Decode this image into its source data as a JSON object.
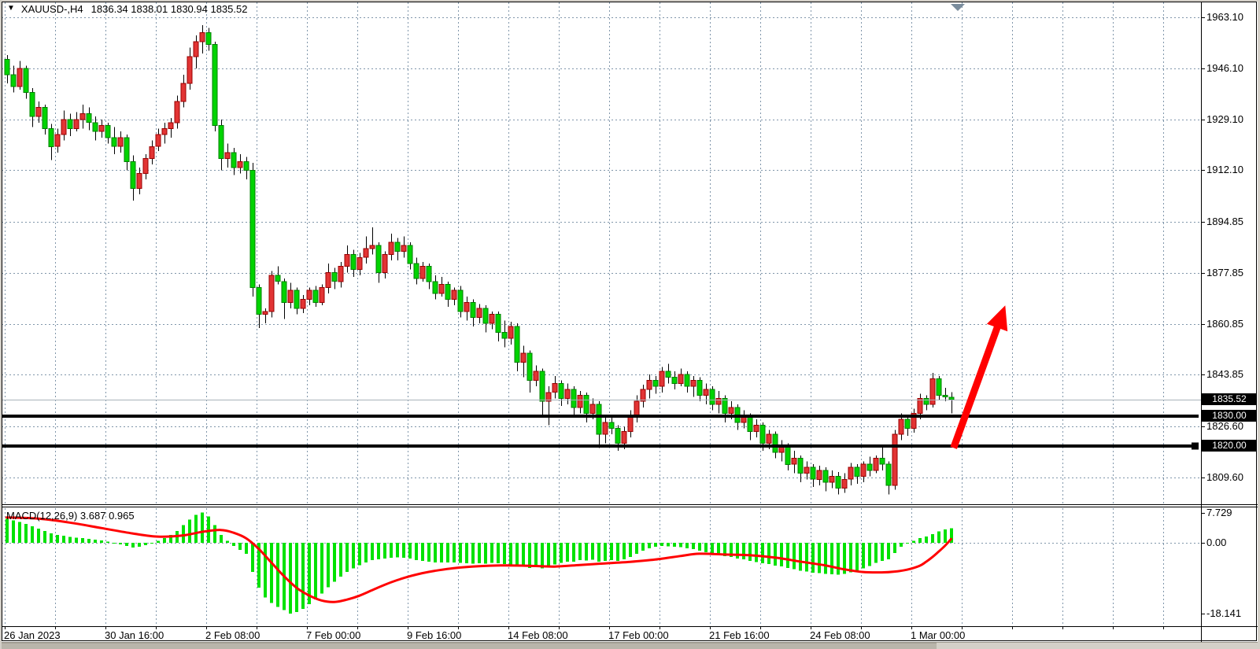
{
  "window": {
    "title_symbol": "XAUUSD-,H4",
    "title_ohlc": "1836.34 1838.01 1830.94 1835.52"
  },
  "colors": {
    "background": "#FFFFFF",
    "frame": "#D4D0C8",
    "grid": "#8096AA",
    "bull_fill": "#E23434",
    "bull_stroke": "#990000",
    "bear_fill": "#00D400",
    "bear_stroke": "#007F00",
    "wick": "#000000",
    "histogram": "#00E200",
    "signal_line": "#FF0000",
    "current_price_line": "#A8B2BA",
    "object_line": "#000000",
    "arrow": "#FF0000",
    "badge_bg": "#000000",
    "badge_fg": "#FFFFFF",
    "shift_marker": "#7A8C9C"
  },
  "price_axis": {
    "ticks": [
      "1963.10",
      "1946.10",
      "1929.10",
      "1912.10",
      "1894.85",
      "1877.85",
      "1860.85",
      "1843.85",
      "1826.60",
      "1809.60"
    ]
  },
  "macd_axis": {
    "max_label": "7.729",
    "zero_label": "0.00",
    "min_label": "-18.141"
  },
  "chart_data": {
    "type": "candlestick",
    "symbol": "XAUUSD-",
    "timeframe": "H4",
    "title": "XAUUSD-,H4  1836.34 1838.01 1830.94 1835.52",
    "last_ohlc": {
      "open": 1836.34,
      "high": 1838.01,
      "low": 1830.94,
      "close": 1835.52
    },
    "price_axis_ticks": [
      1963.1,
      1946.1,
      1929.1,
      1912.1,
      1894.85,
      1877.85,
      1860.85,
      1843.85,
      1826.6,
      1809.6
    ],
    "ylim_main": [
      1804.0,
      1968.4
    ],
    "grid": "dashed",
    "bars_per_grid_cell": 8,
    "time_labels": [
      {
        "text": "26 Jan 2023",
        "grid": 0
      },
      {
        "text": "30 Jan 16:00",
        "grid": 2
      },
      {
        "text": "2 Feb 08:00",
        "grid": 4
      },
      {
        "text": "7 Feb 00:00",
        "grid": 6
      },
      {
        "text": "9 Feb 16:00",
        "grid": 8
      },
      {
        "text": "14 Feb 08:00",
        "grid": 10
      },
      {
        "text": "17 Feb 00:00",
        "grid": 12
      },
      {
        "text": "21 Feb 16:00",
        "grid": 14
      },
      {
        "text": "24 Feb 08:00",
        "grid": 16
      },
      {
        "text": "1 Mar 00:00",
        "grid": 18
      }
    ],
    "current_price": {
      "value": 1835.52,
      "label": "1835.52"
    },
    "horizontal_lines": [
      {
        "price": 1830.0,
        "label": "1830.00",
        "handle": false
      },
      {
        "price": 1820.0,
        "label": "1820.00",
        "handle": true
      }
    ],
    "arrow": {
      "tail": {
        "bar": 150.4,
        "price": 1819.5
      },
      "tip": {
        "bar": 158.6,
        "price": 1867.0
      }
    },
    "candles": [
      [
        1949,
        1950.5,
        1941,
        1944
      ],
      [
        1944,
        1947,
        1938,
        1940
      ],
      [
        1940,
        1948.5,
        1939,
        1946
      ],
      [
        1946,
        1947,
        1936,
        1938
      ],
      [
        1938,
        1939.5,
        1926.5,
        1930
      ],
      [
        1930,
        1935,
        1928,
        1933
      ],
      [
        1933,
        1934,
        1924,
        1926
      ],
      [
        1926,
        1927.5,
        1915.5,
        1920
      ],
      [
        1920,
        1926,
        1918,
        1924
      ],
      [
        1924,
        1932,
        1922,
        1929
      ],
      [
        1929,
        1931,
        1923.5,
        1926
      ],
      [
        1926,
        1931.5,
        1925,
        1929
      ],
      [
        1929,
        1934,
        1926,
        1931
      ],
      [
        1931,
        1933,
        1925.5,
        1928
      ],
      [
        1928,
        1930,
        1922,
        1925
      ],
      [
        1925,
        1929,
        1923,
        1927
      ],
      [
        1927,
        1928,
        1921,
        1923
      ],
      [
        1923,
        1926.5,
        1917.5,
        1920
      ],
      [
        1920,
        1925,
        1918,
        1923
      ],
      [
        1923,
        1924,
        1912,
        1915
      ],
      [
        1915,
        1917,
        1902,
        1906
      ],
      [
        1906,
        1913,
        1904,
        1911
      ],
      [
        1911,
        1917.5,
        1909,
        1916
      ],
      [
        1916,
        1922,
        1914,
        1920
      ],
      [
        1920,
        1926,
        1918.5,
        1924
      ],
      [
        1924,
        1928,
        1921,
        1926
      ],
      [
        1926,
        1929.5,
        1923,
        1928
      ],
      [
        1928,
        1937,
        1926,
        1935
      ],
      [
        1935,
        1944,
        1933,
        1941
      ],
      [
        1941,
        1953,
        1939,
        1950
      ],
      [
        1950,
        1957,
        1946,
        1955
      ],
      [
        1955,
        1960.5,
        1951,
        1958
      ],
      [
        1958,
        1959.5,
        1952,
        1954
      ],
      [
        1954,
        1955,
        1925,
        1927
      ],
      [
        1927,
        1929,
        1912,
        1916
      ],
      [
        1916,
        1921,
        1913,
        1918
      ],
      [
        1918,
        1919.5,
        1910.5,
        1913
      ],
      [
        1913,
        1917.5,
        1911,
        1915
      ],
      [
        1915,
        1916.5,
        1909,
        1912
      ],
      [
        1912,
        1914.5,
        1870,
        1873
      ],
      [
        1873,
        1874,
        1859.5,
        1864
      ],
      [
        1864,
        1866,
        1861,
        1865
      ],
      [
        1865,
        1878.5,
        1863,
        1877
      ],
      [
        1877,
        1880,
        1874,
        1875
      ],
      [
        1875,
        1876,
        1862.5,
        1868
      ],
      [
        1868,
        1874.5,
        1866,
        1872
      ],
      [
        1872,
        1873,
        1864,
        1866
      ],
      [
        1866,
        1870.5,
        1864.5,
        1869
      ],
      [
        1869,
        1873,
        1867,
        1872
      ],
      [
        1872,
        1873.5,
        1866.5,
        1868
      ],
      [
        1868,
        1874,
        1867,
        1873
      ],
      [
        1873,
        1881,
        1871,
        1878
      ],
      [
        1878,
        1879.5,
        1872.5,
        1875
      ],
      [
        1875,
        1881.5,
        1873,
        1880
      ],
      [
        1880,
        1887,
        1878,
        1884
      ],
      [
        1884,
        1885.5,
        1876.5,
        1879
      ],
      [
        1879,
        1884.5,
        1877,
        1883
      ],
      [
        1883,
        1890,
        1881,
        1886
      ],
      [
        1886,
        1893,
        1884,
        1887
      ],
      [
        1887,
        1888,
        1874.5,
        1878
      ],
      [
        1878,
        1885,
        1876,
        1884
      ],
      [
        1884,
        1891,
        1882,
        1888
      ],
      [
        1888,
        1889.5,
        1882,
        1885
      ],
      [
        1885,
        1890,
        1883,
        1887
      ],
      [
        1887,
        1888,
        1879,
        1881
      ],
      [
        1881,
        1883,
        1874,
        1876
      ],
      [
        1876,
        1881.5,
        1875,
        1880
      ],
      [
        1880,
        1881,
        1872.5,
        1875
      ],
      [
        1875,
        1877,
        1869,
        1871
      ],
      [
        1871,
        1876.5,
        1870,
        1874
      ],
      [
        1874,
        1875,
        1866.5,
        1869
      ],
      [
        1869,
        1873,
        1867,
        1872
      ],
      [
        1872,
        1873.5,
        1863,
        1865
      ],
      [
        1865,
        1870,
        1862,
        1868
      ],
      [
        1868,
        1869,
        1860,
        1863
      ],
      [
        1863,
        1867.5,
        1861,
        1866
      ],
      [
        1866,
        1867,
        1858,
        1861
      ],
      [
        1861,
        1865,
        1859,
        1864
      ],
      [
        1864,
        1865,
        1855,
        1858
      ],
      [
        1858,
        1862,
        1853,
        1856
      ],
      [
        1856,
        1861.5,
        1854,
        1860
      ],
      [
        1860,
        1861,
        1845,
        1848
      ],
      [
        1848,
        1853.5,
        1843,
        1851
      ],
      [
        1851,
        1852,
        1838,
        1842
      ],
      [
        1842,
        1847,
        1840,
        1845
      ],
      [
        1845,
        1846,
        1830,
        1835
      ],
      [
        1835,
        1840,
        1827,
        1838
      ],
      [
        1838,
        1843.5,
        1836,
        1841
      ],
      [
        1841,
        1842,
        1833.5,
        1836
      ],
      [
        1836,
        1841,
        1834,
        1839
      ],
      [
        1839,
        1840,
        1830,
        1833
      ],
      [
        1833,
        1838.5,
        1831,
        1837
      ],
      [
        1837,
        1838,
        1828,
        1831
      ],
      [
        1831,
        1836,
        1829,
        1834
      ],
      [
        1834,
        1835,
        1819.5,
        1824
      ],
      [
        1824,
        1830,
        1821,
        1828
      ],
      [
        1828,
        1829.5,
        1824,
        1826
      ],
      [
        1826,
        1827,
        1818.5,
        1821
      ],
      [
        1821,
        1826.5,
        1819,
        1825
      ],
      [
        1825,
        1832,
        1823,
        1830
      ],
      [
        1830,
        1837,
        1828,
        1835
      ],
      [
        1835,
        1840.5,
        1833,
        1839
      ],
      [
        1839,
        1844,
        1836,
        1842
      ],
      [
        1842,
        1843.5,
        1837.5,
        1840
      ],
      [
        1840,
        1846.5,
        1838,
        1845
      ],
      [
        1845,
        1847.5,
        1841,
        1843
      ],
      [
        1843,
        1845,
        1839,
        1841
      ],
      [
        1841,
        1846,
        1840,
        1844
      ],
      [
        1844,
        1845,
        1838,
        1840
      ],
      [
        1840,
        1843.5,
        1836.5,
        1842
      ],
      [
        1842,
        1843,
        1835,
        1837
      ],
      [
        1837,
        1841,
        1834,
        1839
      ],
      [
        1839,
        1840,
        1832,
        1834
      ],
      [
        1834,
        1838.5,
        1831,
        1836
      ],
      [
        1836,
        1837,
        1828,
        1831
      ],
      [
        1831,
        1835,
        1829,
        1833
      ],
      [
        1833,
        1834,
        1825.5,
        1828
      ],
      [
        1828,
        1832,
        1826,
        1830
      ],
      [
        1830,
        1831,
        1822,
        1825
      ],
      [
        1825,
        1829,
        1823,
        1827
      ],
      [
        1827,
        1828,
        1818.5,
        1821
      ],
      [
        1821,
        1825.5,
        1819,
        1824
      ],
      [
        1824,
        1825,
        1816,
        1818
      ],
      [
        1818,
        1822,
        1815,
        1820
      ],
      [
        1820,
        1821,
        1812,
        1814
      ],
      [
        1814,
        1818.5,
        1811,
        1816
      ],
      [
        1816,
        1817,
        1808,
        1811
      ],
      [
        1811,
        1815,
        1809,
        1813
      ],
      [
        1813,
        1814,
        1806.5,
        1809
      ],
      [
        1809,
        1813.5,
        1807,
        1812
      ],
      [
        1812,
        1813,
        1805,
        1808
      ],
      [
        1808,
        1812,
        1806,
        1810
      ],
      [
        1810,
        1811.5,
        1804,
        1806
      ],
      [
        1806,
        1811,
        1804.5,
        1809
      ],
      [
        1809,
        1814.5,
        1807,
        1813
      ],
      [
        1813,
        1814,
        1807.5,
        1810
      ],
      [
        1810,
        1815,
        1808,
        1814
      ],
      [
        1814,
        1816.5,
        1810,
        1812
      ],
      [
        1812,
        1817,
        1811,
        1816
      ],
      [
        1816,
        1820.5,
        1812,
        1814
      ],
      [
        1814,
        1815,
        1804,
        1807
      ],
      [
        1807,
        1825.5,
        1805.5,
        1824
      ],
      [
        1824,
        1831,
        1822,
        1829
      ],
      [
        1829,
        1830,
        1823.5,
        1826
      ],
      [
        1826,
        1832.5,
        1824.5,
        1831
      ],
      [
        1831,
        1837.5,
        1829,
        1836
      ],
      [
        1836,
        1837,
        1832,
        1834
      ],
      [
        1834,
        1844.5,
        1833,
        1842.5
      ],
      [
        1842.5,
        1843.5,
        1835.5,
        1837
      ],
      [
        1837,
        1839.5,
        1835,
        1836.5
      ],
      [
        1836.34,
        1838.01,
        1830.94,
        1835.52
      ]
    ],
    "macd": {
      "name": "MACD(12,26,9)",
      "label_full": "MACD(12,26,9) 3.687 0.965",
      "macd_value": 3.687,
      "signal_value": 0.965,
      "scale_max": 7.729,
      "scale_min": -18.141,
      "histogram": [
        6.2,
        5.8,
        5.4,
        4.8,
        4.2,
        3.6,
        3.0,
        2.4,
        2.0,
        1.8,
        1.5,
        1.3,
        1.2,
        1.0,
        0.8,
        0.6,
        0.3,
        -0.2,
        -0.4,
        -0.8,
        -1.2,
        -1.0,
        -0.6,
        -0.2,
        0.5,
        1.2,
        2.0,
        3.0,
        4.5,
        6.0,
        7.2,
        7.729,
        6.8,
        4.5,
        2.0,
        0.5,
        -0.8,
        -1.8,
        -2.8,
        -7.5,
        -11.5,
        -14.0,
        -15.5,
        -16.5,
        -17.3,
        -18.141,
        -17.8,
        -17.0,
        -15.8,
        -14.5,
        -13.0,
        -11.4,
        -10.0,
        -8.7,
        -7.5,
        -6.6,
        -5.8,
        -5.0,
        -4.4,
        -4.2,
        -4.0,
        -3.8,
        -3.7,
        -3.8,
        -4.0,
        -4.4,
        -4.6,
        -4.8,
        -5.0,
        -5.0,
        -5.1,
        -5.0,
        -5.2,
        -5.3,
        -5.4,
        -5.3,
        -5.4,
        -5.2,
        -5.3,
        -5.5,
        -5.6,
        -6.0,
        -6.2,
        -6.5,
        -6.3,
        -6.6,
        -6.2,
        -5.6,
        -5.2,
        -4.8,
        -4.8,
        -4.4,
        -4.5,
        -4.3,
        -4.8,
        -4.6,
        -4.4,
        -4.6,
        -4.2,
        -3.6,
        -2.8,
        -2.0,
        -1.4,
        -1.0,
        -0.8,
        -0.9,
        -1.0,
        -1.1,
        -1.4,
        -1.6,
        -2.0,
        -2.4,
        -2.8,
        -3.0,
        -3.4,
        -3.6,
        -4.0,
        -4.2,
        -4.6,
        -4.9,
        -5.3,
        -5.5,
        -5.9,
        -6.1,
        -6.5,
        -6.8,
        -7.2,
        -7.4,
        -7.7,
        -7.8,
        -8.0,
        -8.1,
        -8.2,
        -8.0,
        -7.6,
        -7.2,
        -6.6,
        -6.0,
        -5.2,
        -4.6,
        -4.2,
        -2.6,
        -1.0,
        -0.2,
        0.5,
        1.2,
        1.6,
        2.2,
        2.9,
        3.4,
        3.687
      ],
      "signal_points": [
        [
          0,
          6.5
        ],
        [
          5,
          6.2
        ],
        [
          10,
          5.2
        ],
        [
          15,
          3.8
        ],
        [
          20,
          2.4
        ],
        [
          24,
          1.6
        ],
        [
          28,
          1.9
        ],
        [
          31,
          2.8
        ],
        [
          34,
          3.3
        ],
        [
          36,
          2.6
        ],
        [
          38,
          1.2
        ],
        [
          40,
          -1.5
        ],
        [
          42,
          -5.0
        ],
        [
          44,
          -8.5
        ],
        [
          46,
          -11.5
        ],
        [
          48,
          -13.5
        ],
        [
          50,
          -14.8
        ],
        [
          52,
          -15.2
        ],
        [
          54,
          -14.6
        ],
        [
          56,
          -13.6
        ],
        [
          58,
          -12.2
        ],
        [
          60,
          -10.8
        ],
        [
          62,
          -9.6
        ],
        [
          64,
          -8.6
        ],
        [
          66,
          -7.8
        ],
        [
          68,
          -7.2
        ],
        [
          71,
          -6.5
        ],
        [
          75,
          -6.0
        ],
        [
          79,
          -5.8
        ],
        [
          83,
          -5.9
        ],
        [
          87,
          -6.1
        ],
        [
          91,
          -5.7
        ],
        [
          95,
          -5.3
        ],
        [
          99,
          -4.9
        ],
        [
          103,
          -4.3
        ],
        [
          107,
          -3.4
        ],
        [
          110,
          -2.8
        ],
        [
          114,
          -3.0
        ],
        [
          118,
          -3.2
        ],
        [
          122,
          -3.8
        ],
        [
          126,
          -4.8
        ],
        [
          130,
          -5.8
        ],
        [
          133,
          -6.8
        ],
        [
          136,
          -7.5
        ],
        [
          139,
          -7.6
        ],
        [
          141,
          -7.4
        ],
        [
          143,
          -6.9
        ],
        [
          145,
          -5.9
        ],
        [
          146,
          -4.9
        ],
        [
          147,
          -3.7
        ],
        [
          148,
          -2.3
        ],
        [
          149,
          -0.8
        ],
        [
          150,
          0.965
        ]
      ]
    }
  }
}
